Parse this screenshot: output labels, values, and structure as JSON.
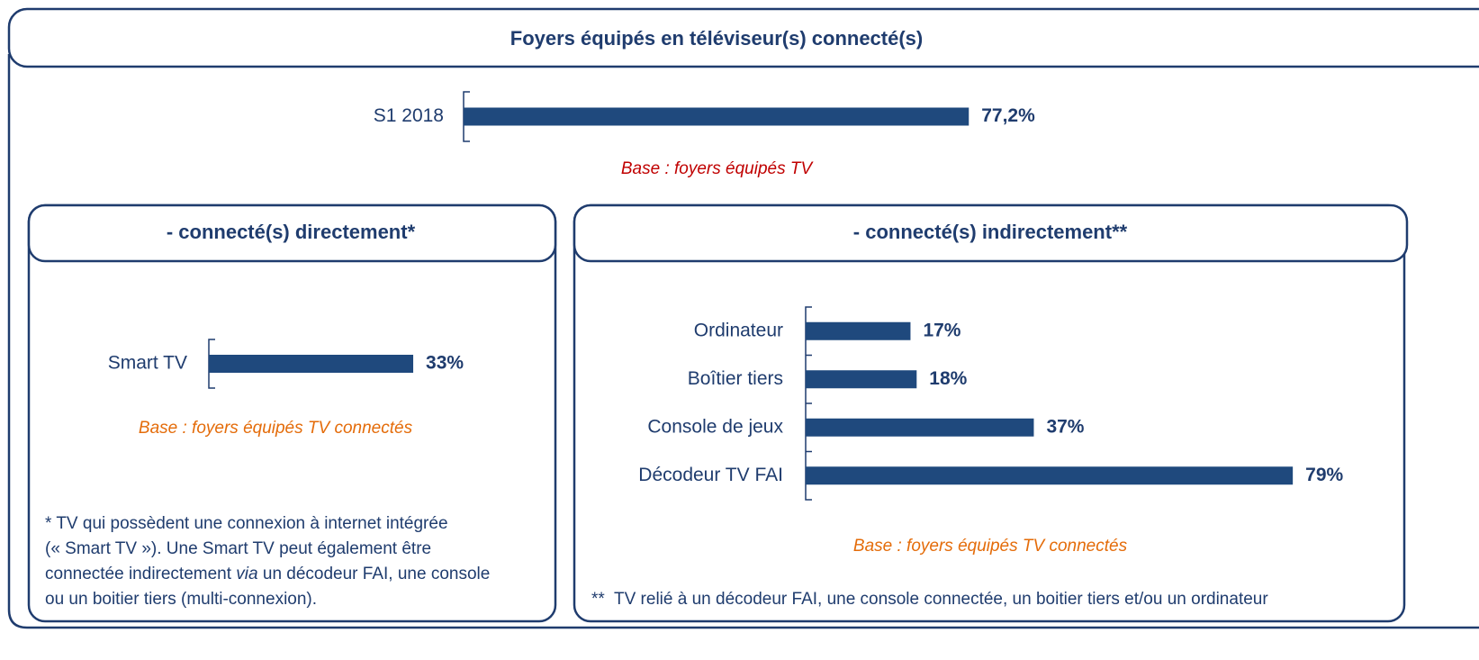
{
  "chart_data": [
    {
      "type": "bar",
      "orientation": "horizontal",
      "title": "Foyers équipés en téléviseur(s) connecté(s)",
      "categories": [
        "S1 2018"
      ],
      "values": [
        77.2
      ],
      "value_labels": [
        "77,2%"
      ],
      "color": "#1f497d",
      "note": "Base : foyers équipés TV",
      "note_color": "#c00000"
    },
    {
      "type": "bar",
      "orientation": "horizontal",
      "title": "- connecté(s) directement*",
      "categories": [
        "Smart TV"
      ],
      "values": [
        33
      ],
      "value_labels": [
        "33%"
      ],
      "color": "#1f497d",
      "note": "Base : foyers équipés TV connectés",
      "note_color": "#e46c0a",
      "footnote": [
        [
          {
            "text": "* TV qui possèdent une connexion à internet intégrée"
          }
        ],
        [
          {
            "text": "(« Smart TV »). Une Smart TV peut également être"
          }
        ],
        [
          {
            "text": "connectée indirectement "
          },
          {
            "text": "via",
            "italic": true
          },
          {
            "text": " un décodeur FAI, une console"
          }
        ],
        [
          {
            "text": "ou un boitier tiers (multi-connexion)."
          }
        ]
      ]
    },
    {
      "type": "bar",
      "orientation": "horizontal",
      "title": "- connecté(s) indirectement**",
      "categories": [
        "Ordinateur",
        "Boîtier tiers",
        "Console de jeux",
        "Décodeur TV FAI"
      ],
      "values": [
        17,
        18,
        37,
        79
      ],
      "value_labels": [
        "17%",
        "18%",
        "37%",
        "79%"
      ],
      "color": "#1f497d",
      "note": "Base : foyers équipés TV connectés",
      "note_color": "#e46c0a",
      "footnote": [
        [
          {
            "text": "**  TV relié à un décodeur FAI, une console connectée, un boitier tiers et/ou un ordinateur"
          }
        ]
      ]
    }
  ]
}
